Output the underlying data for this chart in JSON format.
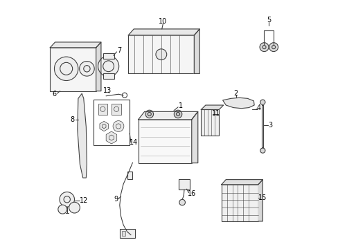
{
  "title": "",
  "bg_color": "#ffffff",
  "line_color": "#404040",
  "text_color": "#000000",
  "fig_width": 4.89,
  "fig_height": 3.6,
  "dpi": 100
}
